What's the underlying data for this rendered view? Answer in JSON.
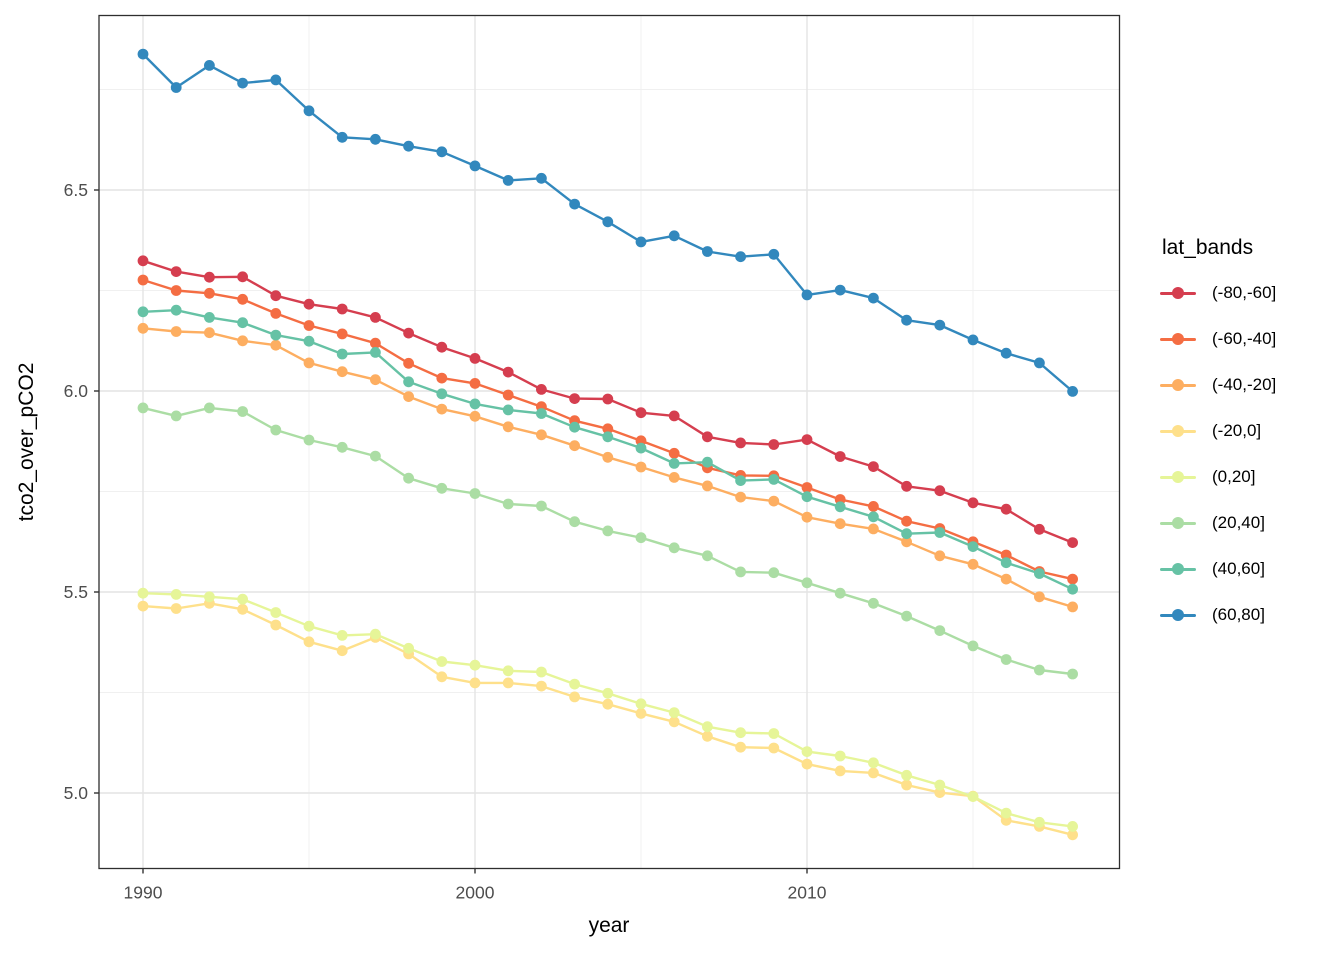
{
  "figure": {
    "x_title": "year",
    "y_title": "tco2_over_pCO2"
  },
  "legend": {
    "title": "lat_bands",
    "position": "right"
  },
  "style": {
    "background": "#ffffff",
    "panel_border": "#2e2e2e",
    "grid_major": "#e4e4e4",
    "grid_minor": "#f0f0f0",
    "tick_label_color": "#4d4d4d",
    "tick_mark_color": "#333333"
  },
  "chart_data": {
    "type": "line",
    "title": "",
    "xlabel": "year",
    "ylabel": "tco2_over_pCO2",
    "legend_title": "lat_bands",
    "legend_position": "right",
    "grid": true,
    "xlim": [
      1988.6,
      2019.4
    ],
    "ylim": [
      4.8,
      6.93
    ],
    "x_ticks_major": [
      1990,
      2000,
      2010
    ],
    "x_tick_labels": [
      "1990",
      "2000",
      "2010"
    ],
    "x_ticks_minor": [
      1995,
      2005,
      2015
    ],
    "y_ticks_major": [
      5.0,
      5.5,
      6.0,
      6.5
    ],
    "y_tick_labels": [
      "5.0",
      "5.5",
      "6.0",
      "6.5"
    ],
    "y_ticks_minor": [
      5.25,
      5.75,
      6.25,
      6.75
    ],
    "x": [
      1990,
      1991,
      1992,
      1993,
      1994,
      1995,
      1996,
      1997,
      1998,
      1999,
      2000,
      2001,
      2002,
      2003,
      2004,
      2005,
      2006,
      2007,
      2008,
      2009,
      2010,
      2011,
      2012,
      2013,
      2014,
      2015,
      2016,
      2017,
      2018
    ],
    "series": [
      {
        "name": "(-80,-60]",
        "color": "#d53e4f",
        "values": [
          6.324,
          6.297,
          6.283,
          6.284,
          6.237,
          6.216,
          6.204,
          6.183,
          6.144,
          6.109,
          6.081,
          6.047,
          6.004,
          5.981,
          5.98,
          5.946,
          5.938,
          5.886,
          5.871,
          5.867,
          5.879,
          5.837,
          5.812,
          5.763,
          5.752,
          5.722,
          5.706,
          5.656,
          5.623
        ]
      },
      {
        "name": "(-60,-40]",
        "color": "#f46d43",
        "values": [
          6.276,
          6.25,
          6.243,
          6.228,
          6.193,
          6.163,
          6.142,
          6.119,
          6.069,
          6.032,
          6.019,
          5.99,
          5.961,
          5.926,
          5.906,
          5.876,
          5.845,
          5.809,
          5.79,
          5.789,
          5.76,
          5.73,
          5.713,
          5.676,
          5.658,
          5.625,
          5.592,
          5.551,
          5.532
        ]
      },
      {
        "name": "(-40,-20]",
        "color": "#fdae61",
        "values": [
          6.156,
          6.148,
          6.145,
          6.125,
          6.114,
          6.07,
          6.048,
          6.028,
          5.986,
          5.955,
          5.937,
          5.911,
          5.891,
          5.864,
          5.835,
          5.811,
          5.785,
          5.764,
          5.736,
          5.726,
          5.686,
          5.67,
          5.657,
          5.625,
          5.59,
          5.569,
          5.532,
          5.488,
          5.463
        ]
      },
      {
        "name": "(-20,0]",
        "color": "#fee08b",
        "values": [
          5.465,
          5.459,
          5.472,
          5.457,
          5.418,
          5.376,
          5.354,
          5.387,
          5.346,
          5.289,
          5.274,
          5.274,
          5.266,
          5.239,
          5.221,
          5.198,
          5.177,
          5.141,
          5.114,
          5.112,
          5.072,
          5.055,
          5.05,
          5.02,
          5.001,
          4.992,
          4.932,
          4.917,
          4.896
        ]
      },
      {
        "name": "(0,20]",
        "color": "#e6f598",
        "values": [
          5.497,
          5.494,
          5.488,
          5.482,
          5.449,
          5.415,
          5.392,
          5.395,
          5.36,
          5.327,
          5.318,
          5.304,
          5.301,
          5.271,
          5.248,
          5.222,
          5.2,
          5.165,
          5.15,
          5.148,
          5.103,
          5.092,
          5.075,
          5.044,
          5.02,
          4.991,
          4.95,
          4.927,
          4.917
        ]
      },
      {
        "name": "(20,40]",
        "color": "#abdda4",
        "values": [
          5.958,
          5.938,
          5.958,
          5.949,
          5.903,
          5.878,
          5.86,
          5.838,
          5.783,
          5.758,
          5.745,
          5.719,
          5.714,
          5.675,
          5.652,
          5.635,
          5.61,
          5.59,
          5.55,
          5.548,
          5.523,
          5.497,
          5.472,
          5.44,
          5.404,
          5.366,
          5.332,
          5.306,
          5.296
        ]
      },
      {
        "name": "(40,60]",
        "color": "#66c2a5",
        "values": [
          6.197,
          6.201,
          6.183,
          6.17,
          6.139,
          6.124,
          6.092,
          6.096,
          6.023,
          5.993,
          5.968,
          5.953,
          5.944,
          5.91,
          5.886,
          5.858,
          5.82,
          5.823,
          5.777,
          5.78,
          5.737,
          5.712,
          5.687,
          5.645,
          5.648,
          5.613,
          5.573,
          5.546,
          5.507
        ]
      },
      {
        "name": "(60,80]",
        "color": "#3288bd",
        "values": [
          6.838,
          6.755,
          6.81,
          6.766,
          6.774,
          6.697,
          6.631,
          6.626,
          6.609,
          6.595,
          6.56,
          6.524,
          6.529,
          6.465,
          6.421,
          6.371,
          6.386,
          6.347,
          6.334,
          6.34,
          6.239,
          6.251,
          6.231,
          6.176,
          6.164,
          6.127,
          6.094,
          6.07,
          5.999
        ]
      }
    ]
  }
}
